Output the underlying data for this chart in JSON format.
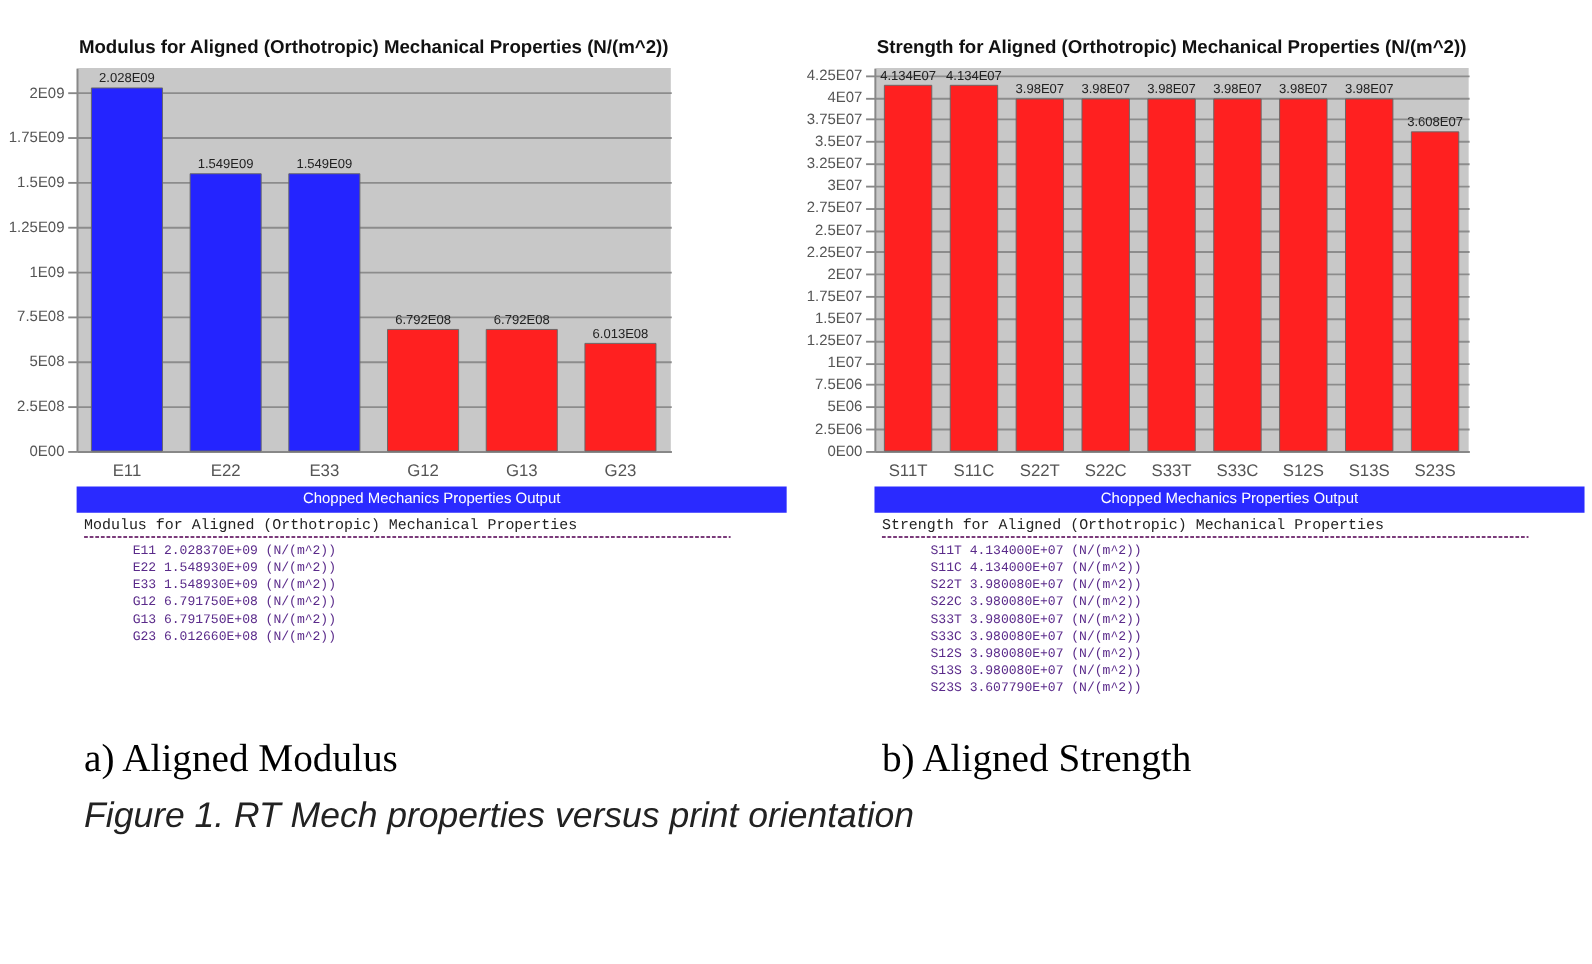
{
  "chart_data": [
    {
      "type": "bar",
      "title": "Modulus for Aligned (Orthotropic) Mechanical Properties (N/(m^2))",
      "categories": [
        "E11",
        "E22",
        "E33",
        "G12",
        "G13",
        "G23"
      ],
      "values": [
        2028370000,
        1548930000,
        1548930000,
        679175000,
        679175000,
        601266000
      ],
      "colors": [
        "#2424ff",
        "#2424ff",
        "#2424ff",
        "#ff2020",
        "#ff2020",
        "#ff2020"
      ],
      "value_labels": [
        "2.028E09",
        "1.549E09",
        "1.549E09",
        "6.792E08",
        "6.792E08",
        "6.013E08"
      ],
      "ylim": [
        0,
        2140000000
      ],
      "yticks": [
        {
          "value": 0,
          "label": "0E00"
        },
        {
          "value": 250000000,
          "label": "2.5E08"
        },
        {
          "value": 500000000,
          "label": "5E08"
        },
        {
          "value": 750000000,
          "label": "7.5E08"
        },
        {
          "value": 1000000000,
          "label": "1E09"
        },
        {
          "value": 1250000000,
          "label": "1.25E09"
        },
        {
          "value": 1500000000,
          "label": "1.5E09"
        },
        {
          "value": 1750000000,
          "label": "1.75E09"
        },
        {
          "value": 2000000000,
          "label": "2E09"
        }
      ],
      "grid": "y",
      "annotations": [
        "Chopped Mechanics Properties Output",
        "Modulus for Aligned (Orthotropic) Mechanical Properties",
        "E11 2.028370E+09 (N/(m^2))",
        "E22 1.548930E+09 (N/(m^2))",
        "E33 1.548930E+09 (N/(m^2))",
        "G12 6.791750E+08 (N/(m^2))",
        "G13 6.791750E+08 (N/(m^2))",
        "G23 6.012660E+08 (N/(m^2))",
        "a) Aligned Modulus"
      ]
    },
    {
      "type": "bar",
      "title": "Strength for Aligned (Orthotropic) Mechanical Properties (N/(m^2))",
      "categories": [
        "S11T",
        "S11C",
        "S22T",
        "S22C",
        "S33T",
        "S33C",
        "S12S",
        "S13S",
        "S23S"
      ],
      "values": [
        41340000,
        41340000,
        39800800,
        39800800,
        39800800,
        39800800,
        39800800,
        39800800,
        36077900
      ],
      "colors": [
        "#ff2020",
        "#ff2020",
        "#ff2020",
        "#ff2020",
        "#ff2020",
        "#ff2020",
        "#ff2020",
        "#ff2020",
        "#ff2020"
      ],
      "value_labels": [
        "4.134E07",
        "4.134E07",
        "3.98E07",
        "3.98E07",
        "3.98E07",
        "3.98E07",
        "3.98E07",
        "3.98E07",
        "3.608E07"
      ],
      "ylim": [
        0,
        43300000
      ],
      "yticks": [
        {
          "value": 0,
          "label": "0E00"
        },
        {
          "value": 2500000,
          "label": "2.5E06"
        },
        {
          "value": 5000000,
          "label": "5E06"
        },
        {
          "value": 7500000,
          "label": "7.5E06"
        },
        {
          "value": 10000000,
          "label": "1E07"
        },
        {
          "value": 12500000,
          "label": "1.25E07"
        },
        {
          "value": 15000000,
          "label": "1.5E07"
        },
        {
          "value": 17500000,
          "label": "1.75E07"
        },
        {
          "value": 20000000,
          "label": "2E07"
        },
        {
          "value": 22500000,
          "label": "2.25E07"
        },
        {
          "value": 25000000,
          "label": "2.5E07"
        },
        {
          "value": 27500000,
          "label": "2.75E07"
        },
        {
          "value": 30000000,
          "label": "3E07"
        },
        {
          "value": 32500000,
          "label": "3.25E07"
        },
        {
          "value": 35000000,
          "label": "3.5E07"
        },
        {
          "value": 37500000,
          "label": "3.75E07"
        },
        {
          "value": 40000000,
          "label": "4E07"
        },
        {
          "value": 42500000,
          "label": "4.25E07"
        }
      ],
      "grid": "y",
      "annotations": [
        "Chopped Mechanics Properties Output",
        "Strength for Aligned (Orthotropic) Mechanical Properties",
        "S11T 4.134000E+07 (N/(m^2))",
        "S11C 4.134000E+07 (N/(m^2))",
        "S22T 3.980080E+07 (N/(m^2))",
        "S22C 3.980080E+07 (N/(m^2))",
        "S33T 3.980080E+07 (N/(m^2))",
        "S33C 3.980080E+07 (N/(m^2))",
        "S12S 3.980080E+07 (N/(m^2))",
        "S13S 3.980080E+07 (N/(m^2))",
        "S23S 3.607790E+07 (N/(m^2))",
        "b) Aligned Strength"
      ]
    },
    {
      "type": "other",
      "annotations": [
        "Figure 1. RT Mech properties versus print orientation"
      ]
    }
  ]
}
